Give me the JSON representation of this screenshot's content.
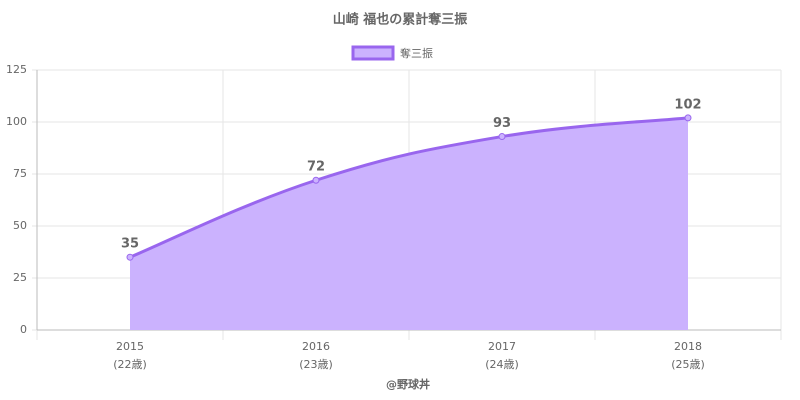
{
  "chart_data": {
    "type": "area",
    "title": "山崎 福也の累計奪三振",
    "x_label": "@野球丼",
    "categories": [
      "2015",
      "2016",
      "2017",
      "2018"
    ],
    "sublabels": [
      "(22歳)",
      "(23歳)",
      "(24歳)",
      "(25歳)"
    ],
    "series": [
      {
        "name": "奪三振",
        "color": "#9966ee",
        "fill": "#cbb2fe",
        "values": [
          35,
          72,
          93,
          102
        ]
      }
    ],
    "ylim": [
      0,
      125
    ],
    "yticks": [
      0,
      25,
      50,
      75,
      100,
      125
    ],
    "grid": true,
    "legend": "top"
  }
}
